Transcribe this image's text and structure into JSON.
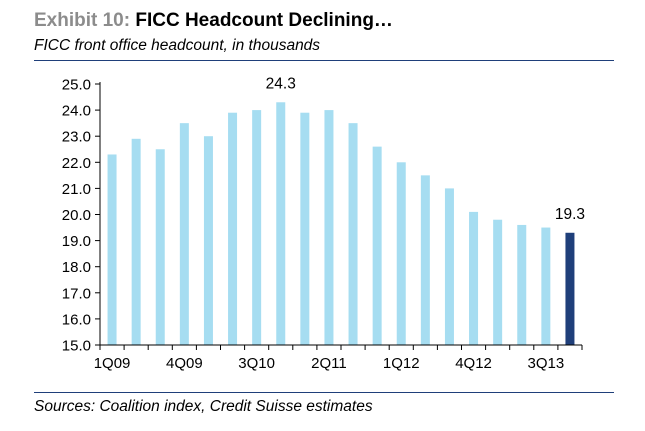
{
  "header": {
    "exhibit_label": "Exhibit 10:",
    "title": "FICC Headcount Declining…",
    "subtitle": "FICC front office headcount, in thousands"
  },
  "footer": {
    "source": "Sources: Coalition index, Credit Suisse estimates"
  },
  "chart_data": {
    "type": "bar",
    "title": "FICC Headcount Declining…",
    "subtitle": "FICC front office headcount, in thousands",
    "xlabel": "",
    "ylabel": "",
    "categories": [
      "1Q09",
      "2Q09",
      "3Q09",
      "4Q09",
      "1Q10",
      "2Q10",
      "3Q10",
      "4Q10",
      "1Q11",
      "2Q11",
      "3Q11",
      "4Q11",
      "1Q12",
      "2Q12",
      "3Q12",
      "4Q12",
      "1Q13",
      "2Q13",
      "3Q13",
      "4Q13"
    ],
    "x_tick_labels": [
      "1Q09",
      "4Q09",
      "3Q10",
      "2Q11",
      "1Q12",
      "4Q12",
      "3Q13"
    ],
    "values": [
      22.3,
      22.9,
      22.5,
      23.5,
      23.0,
      23.9,
      24.0,
      24.3,
      23.9,
      24.0,
      23.5,
      22.6,
      22.0,
      21.5,
      21.0,
      20.1,
      19.8,
      19.6,
      19.5,
      19.3
    ],
    "ylim": [
      15.0,
      25.0
    ],
    "y_ticks": [
      "15.0",
      "16.0",
      "17.0",
      "18.0",
      "19.0",
      "20.0",
      "21.0",
      "22.0",
      "23.0",
      "24.0",
      "25.0"
    ],
    "data_labels": [
      {
        "category": "4Q10",
        "text": "24.3"
      },
      {
        "category": "4Q13",
        "text": "19.3"
      }
    ],
    "bar_color": "#a6ddf1",
    "highlight_color": "#1f3f7a",
    "highlight_category": "4Q13",
    "grid": false,
    "legend": "none"
  }
}
